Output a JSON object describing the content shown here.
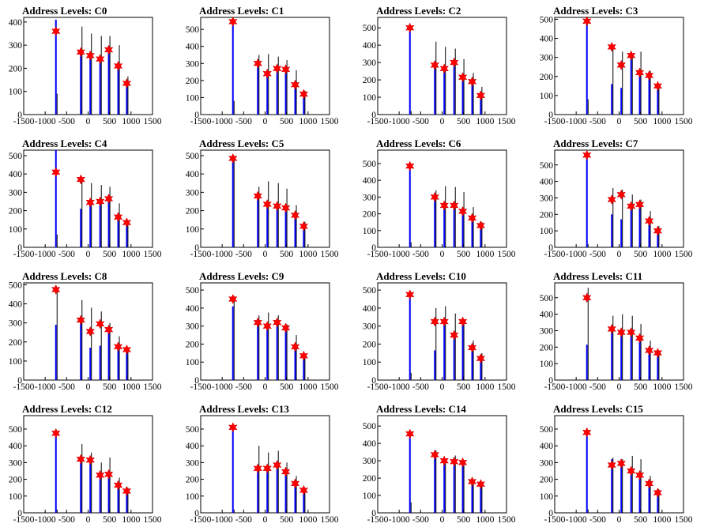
{
  "title_prefix": "Address Levels: ",
  "x_ticks": [
    -1500,
    -1000,
    -500,
    0,
    500,
    1000,
    1500
  ],
  "colors": {
    "bar": "#0000ff",
    "spike": "#000000",
    "marker": "#ff0000",
    "axis": "#000000"
  },
  "marker_shape": "star",
  "chart_data": [
    {
      "type": "bar",
      "title": "Address Levels: C0",
      "xlim": [
        -1500,
        1500
      ],
      "ylim": [
        0,
        420
      ],
      "y_ticks": [
        100,
        200,
        300,
        400
      ],
      "peaks": [
        {
          "x": -750,
          "bar": 410,
          "black": 90,
          "marker": 360
        },
        {
          "x": -170,
          "bar": 260,
          "black": 380,
          "marker": 270
        },
        {
          "x": 50,
          "bar": 250,
          "black": 350,
          "marker": 255
        },
        {
          "x": 280,
          "bar": 235,
          "black": 340,
          "marker": 240
        },
        {
          "x": 480,
          "bar": 290,
          "black": 340,
          "marker": 280
        },
        {
          "x": 700,
          "bar": 225,
          "black": 300,
          "marker": 210
        },
        {
          "x": 900,
          "bar": 145,
          "black": 165,
          "marker": 135
        }
      ]
    },
    {
      "type": "bar",
      "title": "Address Levels: C1",
      "xlim": [
        -1500,
        1500
      ],
      "ylim": [
        0,
        570
      ],
      "y_ticks": [
        100,
        200,
        300,
        400,
        500
      ],
      "peaks": [
        {
          "x": -750,
          "bar": 545,
          "black": 80,
          "marker": 545
        },
        {
          "x": -170,
          "bar": 290,
          "black": 350,
          "marker": 300
        },
        {
          "x": 50,
          "bar": 230,
          "black": 355,
          "marker": 240
        },
        {
          "x": 280,
          "bar": 255,
          "black": 340,
          "marker": 270
        },
        {
          "x": 480,
          "bar": 260,
          "black": 320,
          "marker": 265
        },
        {
          "x": 700,
          "bar": 165,
          "black": 260,
          "marker": 175
        },
        {
          "x": 900,
          "bar": 110,
          "black": 140,
          "marker": 120
        }
      ]
    },
    {
      "type": "bar",
      "title": "Address Levels: C2",
      "xlim": [
        -1500,
        1500
      ],
      "ylim": [
        0,
        560
      ],
      "y_ticks": [
        100,
        200,
        300,
        400,
        500
      ],
      "peaks": [
        {
          "x": -750,
          "bar": 495,
          "black": 20,
          "marker": 500
        },
        {
          "x": -170,
          "bar": 270,
          "black": 420,
          "marker": 285
        },
        {
          "x": 50,
          "bar": 255,
          "black": 390,
          "marker": 265
        },
        {
          "x": 280,
          "bar": 290,
          "black": 380,
          "marker": 300
        },
        {
          "x": 480,
          "bar": 205,
          "black": 320,
          "marker": 215
        },
        {
          "x": 700,
          "bar": 180,
          "black": 240,
          "marker": 190
        },
        {
          "x": 900,
          "bar": 100,
          "black": 160,
          "marker": 110
        }
      ]
    },
    {
      "type": "bar",
      "title": "Address Levels: C3",
      "xlim": [
        -1500,
        1500
      ],
      "ylim": [
        0,
        510
      ],
      "y_ticks": [
        100,
        200,
        300,
        400,
        500
      ],
      "peaks": [
        {
          "x": -750,
          "bar": 490,
          "black": 80,
          "marker": 490
        },
        {
          "x": -170,
          "bar": 160,
          "black": 350,
          "marker": 355
        },
        {
          "x": 50,
          "bar": 140,
          "black": 330,
          "marker": 260
        },
        {
          "x": 280,
          "bar": 300,
          "black": 320,
          "marker": 310
        },
        {
          "x": 480,
          "bar": 220,
          "black": 330,
          "marker": 220
        },
        {
          "x": 700,
          "bar": 205,
          "black": 230,
          "marker": 205
        },
        {
          "x": 900,
          "bar": 145,
          "black": 160,
          "marker": 150
        }
      ]
    },
    {
      "type": "bar",
      "title": "Address Levels: C4",
      "xlim": [
        -1500,
        1500
      ],
      "ylim": [
        0,
        530
      ],
      "y_ticks": [
        100,
        200,
        300,
        400,
        500
      ],
      "peaks": [
        {
          "x": -750,
          "bar": 530,
          "black": 70,
          "marker": 410
        },
        {
          "x": -170,
          "bar": 210,
          "black": 370,
          "marker": 370
        },
        {
          "x": 50,
          "bar": 240,
          "black": 350,
          "marker": 245
        },
        {
          "x": 280,
          "bar": 250,
          "black": 340,
          "marker": 250
        },
        {
          "x": 480,
          "bar": 260,
          "black": 330,
          "marker": 265
        },
        {
          "x": 700,
          "bar": 165,
          "black": 240,
          "marker": 165
        },
        {
          "x": 900,
          "bar": 135,
          "black": 145,
          "marker": 135
        }
      ]
    },
    {
      "type": "bar",
      "title": "Address Levels: C5",
      "xlim": [
        -1500,
        1500
      ],
      "ylim": [
        0,
        530
      ],
      "y_ticks": [
        100,
        200,
        300,
        400,
        500
      ],
      "peaks": [
        {
          "x": -750,
          "bar": 485,
          "black": 490,
          "marker": 485
        },
        {
          "x": -170,
          "bar": 270,
          "black": 330,
          "marker": 280
        },
        {
          "x": 50,
          "bar": 225,
          "black": 360,
          "marker": 235
        },
        {
          "x": 280,
          "bar": 220,
          "black": 350,
          "marker": 225
        },
        {
          "x": 480,
          "bar": 205,
          "black": 320,
          "marker": 215
        },
        {
          "x": 700,
          "bar": 165,
          "black": 230,
          "marker": 175
        },
        {
          "x": 900,
          "bar": 110,
          "black": 140,
          "marker": 115
        }
      ]
    },
    {
      "type": "bar",
      "title": "Address Levels: C6",
      "xlim": [
        -1500,
        1500
      ],
      "ylim": [
        0,
        580
      ],
      "y_ticks": [
        100,
        200,
        300,
        400,
        500
      ],
      "peaks": [
        {
          "x": -750,
          "bar": 485,
          "black": 30,
          "marker": 485
        },
        {
          "x": -170,
          "bar": 290,
          "black": 340,
          "marker": 300
        },
        {
          "x": 50,
          "bar": 245,
          "black": 365,
          "marker": 250
        },
        {
          "x": 280,
          "bar": 240,
          "black": 360,
          "marker": 250
        },
        {
          "x": 480,
          "bar": 210,
          "black": 330,
          "marker": 215
        },
        {
          "x": 700,
          "bar": 165,
          "black": 240,
          "marker": 175
        },
        {
          "x": 900,
          "bar": 125,
          "black": 150,
          "marker": 130
        }
      ]
    },
    {
      "type": "bar",
      "title": "Address Levels: C7",
      "xlim": [
        -1500,
        1500
      ],
      "ylim": [
        0,
        590
      ],
      "y_ticks": [
        100,
        200,
        300,
        400,
        500
      ],
      "peaks": [
        {
          "x": -750,
          "bar": 560,
          "black": 20,
          "marker": 560
        },
        {
          "x": -170,
          "bar": 200,
          "black": 360,
          "marker": 290
        },
        {
          "x": 50,
          "bar": 170,
          "black": 350,
          "marker": 320
        },
        {
          "x": 280,
          "bar": 250,
          "black": 320,
          "marker": 250
        },
        {
          "x": 480,
          "bar": 255,
          "black": 290,
          "marker": 260
        },
        {
          "x": 700,
          "bar": 155,
          "black": 220,
          "marker": 160
        },
        {
          "x": 900,
          "bar": 105,
          "black": 130,
          "marker": 100
        }
      ]
    },
    {
      "type": "bar",
      "title": "Address Levels: C8",
      "xlim": [
        -1500,
        1500
      ],
      "ylim": [
        0,
        510
      ],
      "y_ticks": [
        100,
        200,
        300,
        400,
        500
      ],
      "peaks": [
        {
          "x": -750,
          "bar": 290,
          "black": 470,
          "marker": 475
        },
        {
          "x": -170,
          "bar": 300,
          "black": 420,
          "marker": 315
        },
        {
          "x": 50,
          "bar": 170,
          "black": 380,
          "marker": 255
        },
        {
          "x": 280,
          "bar": 180,
          "black": 360,
          "marker": 295
        },
        {
          "x": 480,
          "bar": 260,
          "black": 300,
          "marker": 265
        },
        {
          "x": 700,
          "bar": 160,
          "black": 230,
          "marker": 175
        },
        {
          "x": 900,
          "bar": 150,
          "black": 160,
          "marker": 160
        }
      ]
    },
    {
      "type": "bar",
      "title": "Address Levels: C9",
      "xlim": [
        -1500,
        1500
      ],
      "ylim": [
        0,
        540
      ],
      "y_ticks": [
        100,
        200,
        300,
        400,
        500
      ],
      "peaks": [
        {
          "x": -750,
          "bar": 410,
          "black": 465,
          "marker": 450
        },
        {
          "x": -170,
          "bar": 310,
          "black": 360,
          "marker": 320
        },
        {
          "x": 50,
          "bar": 300,
          "black": 375,
          "marker": 300
        },
        {
          "x": 280,
          "bar": 310,
          "black": 360,
          "marker": 320
        },
        {
          "x": 480,
          "bar": 290,
          "black": 310,
          "marker": 290
        },
        {
          "x": 700,
          "bar": 185,
          "black": 250,
          "marker": 185
        },
        {
          "x": 900,
          "bar": 125,
          "black": 130,
          "marker": 135
        }
      ]
    },
    {
      "type": "bar",
      "title": "Address Levels: C10",
      "xlim": [
        -1500,
        1500
      ],
      "ylim": [
        0,
        540
      ],
      "y_ticks": [
        100,
        200,
        300,
        400,
        500
      ],
      "peaks": [
        {
          "x": -750,
          "bar": 470,
          "black": 40,
          "marker": 475
        },
        {
          "x": -170,
          "bar": 165,
          "black": 400,
          "marker": 325
        },
        {
          "x": 50,
          "bar": 310,
          "black": 410,
          "marker": 325
        },
        {
          "x": 280,
          "bar": 240,
          "black": 370,
          "marker": 250
        },
        {
          "x": 480,
          "bar": 315,
          "black": 330,
          "marker": 325
        },
        {
          "x": 700,
          "bar": 170,
          "black": 220,
          "marker": 180
        },
        {
          "x": 900,
          "bar": 115,
          "black": 150,
          "marker": 120
        }
      ]
    },
    {
      "type": "bar",
      "title": "Address Levels: C11",
      "xlim": [
        -1500,
        1500
      ],
      "ylim": [
        0,
        590
      ],
      "y_ticks": [
        100,
        200,
        300,
        400,
        500
      ],
      "peaks": [
        {
          "x": -750,
          "bar": 215,
          "black": 560,
          "marker": 500
        },
        {
          "x": -170,
          "bar": 300,
          "black": 390,
          "marker": 310
        },
        {
          "x": 50,
          "bar": 290,
          "black": 400,
          "marker": 290
        },
        {
          "x": 280,
          "bar": 285,
          "black": 390,
          "marker": 290
        },
        {
          "x": 480,
          "bar": 250,
          "black": 340,
          "marker": 255
        },
        {
          "x": 700,
          "bar": 170,
          "black": 240,
          "marker": 180
        },
        {
          "x": 900,
          "bar": 160,
          "black": 170,
          "marker": 165
        }
      ]
    },
    {
      "type": "bar",
      "title": "Address Levels: C12",
      "xlim": [
        -1500,
        1500
      ],
      "ylim": [
        0,
        580
      ],
      "y_ticks": [
        100,
        200,
        300,
        400,
        500
      ],
      "peaks": [
        {
          "x": -750,
          "bar": 470,
          "black": 20,
          "marker": 475
        },
        {
          "x": -170,
          "bar": 300,
          "black": 410,
          "marker": 320
        },
        {
          "x": 50,
          "bar": 310,
          "black": 360,
          "marker": 315
        },
        {
          "x": 280,
          "bar": 225,
          "black": 300,
          "marker": 225
        },
        {
          "x": 480,
          "bar": 220,
          "black": 330,
          "marker": 230
        },
        {
          "x": 700,
          "bar": 160,
          "black": 210,
          "marker": 165
        },
        {
          "x": 900,
          "bar": 125,
          "black": 150,
          "marker": 130
        }
      ]
    },
    {
      "type": "bar",
      "title": "Address Levels: C13",
      "xlim": [
        -1500,
        1500
      ],
      "ylim": [
        0,
        580
      ],
      "y_ticks": [
        100,
        200,
        300,
        400,
        500
      ],
      "peaks": [
        {
          "x": -750,
          "bar": 505,
          "black": 20,
          "marker": 510
        },
        {
          "x": -170,
          "bar": 255,
          "black": 400,
          "marker": 265
        },
        {
          "x": 50,
          "bar": 265,
          "black": 360,
          "marker": 265
        },
        {
          "x": 280,
          "bar": 280,
          "black": 370,
          "marker": 285
        },
        {
          "x": 480,
          "bar": 240,
          "black": 300,
          "marker": 245
        },
        {
          "x": 700,
          "bar": 170,
          "black": 220,
          "marker": 175
        },
        {
          "x": 900,
          "bar": 130,
          "black": 140,
          "marker": 135
        }
      ]
    },
    {
      "type": "bar",
      "title": "Address Levels: C14",
      "xlim": [
        -1500,
        1500
      ],
      "ylim": [
        0,
        560
      ],
      "y_ticks": [
        100,
        200,
        300,
        400,
        500
      ],
      "peaks": [
        {
          "x": -750,
          "bar": 455,
          "black": 60,
          "marker": 455
        },
        {
          "x": -170,
          "bar": 330,
          "black": 360,
          "marker": 335
        },
        {
          "x": 50,
          "bar": 290,
          "black": 300,
          "marker": 300
        },
        {
          "x": 280,
          "bar": 290,
          "black": 330,
          "marker": 295
        },
        {
          "x": 480,
          "bar": 290,
          "black": 300,
          "marker": 290
        },
        {
          "x": 700,
          "bar": 175,
          "black": 190,
          "marker": 180
        },
        {
          "x": 900,
          "bar": 160,
          "black": 170,
          "marker": 165
        }
      ]
    },
    {
      "type": "bar",
      "title": "Address Levels: C15",
      "xlim": [
        -1500,
        1500
      ],
      "ylim": [
        0,
        580
      ],
      "y_ticks": [
        100,
        200,
        300,
        400,
        500
      ],
      "peaks": [
        {
          "x": -750,
          "bar": 475,
          "black": 20,
          "marker": 480
        },
        {
          "x": -170,
          "bar": 320,
          "black": 330,
          "marker": 285
        },
        {
          "x": 50,
          "bar": 290,
          "black": 320,
          "marker": 295
        },
        {
          "x": 280,
          "bar": 250,
          "black": 340,
          "marker": 250
        },
        {
          "x": 480,
          "bar": 220,
          "black": 320,
          "marker": 225
        },
        {
          "x": 700,
          "bar": 175,
          "black": 220,
          "marker": 175
        },
        {
          "x": 900,
          "bar": 125,
          "black": 140,
          "marker": 120
        }
      ]
    }
  ]
}
